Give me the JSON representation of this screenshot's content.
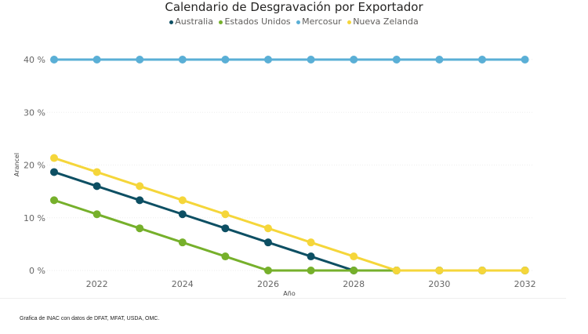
{
  "chart_data": {
    "type": "line",
    "title": "Calendario de Desgravación por Exportador",
    "xlabel": "Año",
    "ylabel": "Arancel",
    "x": [
      2021,
      2022,
      2023,
      2024,
      2025,
      2026,
      2027,
      2028,
      2029,
      2030,
      2031,
      2032
    ],
    "xticks": [
      "2022",
      "2024",
      "2026",
      "2028",
      "2030",
      "2032"
    ],
    "yticks": [
      "0 %",
      "10 %",
      "20 %",
      "30 %",
      "40 %"
    ],
    "ylim": [
      0,
      40
    ],
    "grid": true,
    "legend_position": "top-center",
    "series": [
      {
        "name": "Australia",
        "color": "#0d4f63",
        "values": [
          18.67,
          16,
          13.33,
          10.67,
          8,
          5.33,
          2.67,
          0,
          0,
          0,
          0,
          0
        ]
      },
      {
        "name": "Estados Unidos",
        "color": "#76b02b",
        "values": [
          13.33,
          10.67,
          8,
          5.33,
          2.67,
          0,
          0,
          0,
          0,
          0,
          0,
          0
        ]
      },
      {
        "name": "Mercosur",
        "color": "#5aafd6",
        "values": [
          40,
          40,
          40,
          40,
          40,
          40,
          40,
          40,
          40,
          40,
          40,
          40
        ]
      },
      {
        "name": "Nueva Zelanda",
        "color": "#f5d63a",
        "values": [
          21.33,
          18.67,
          16,
          13.33,
          10.67,
          8,
          5.33,
          2.67,
          0,
          0,
          0,
          0
        ]
      }
    ]
  },
  "footer": "Grafica de INAC con datos de DFAT, MFAT, USDA, OMC."
}
